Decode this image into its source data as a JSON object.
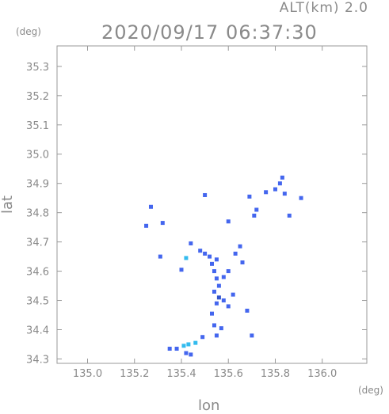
{
  "header": {
    "altitude_label": "ALT(km) 2.0",
    "timestamp": "2020/09/17 06:37:30"
  },
  "chart_data": {
    "type": "scatter",
    "xlabel": "lon",
    "ylabel": "lat",
    "x_unit": "(deg)",
    "y_unit": "(deg)",
    "xlim": [
      134.87,
      136.19
    ],
    "ylim": [
      34.285,
      35.37
    ],
    "x_ticks": [
      135.0,
      135.2,
      135.4,
      135.6,
      135.8,
      136.0
    ],
    "x_tick_labels": [
      "135.0",
      "135.2",
      "135.4",
      "135.6",
      "135.8",
      "136.0"
    ],
    "y_ticks": [
      34.3,
      34.4,
      34.5,
      34.6,
      34.7,
      34.8,
      34.9,
      35.0,
      35.1,
      35.2,
      35.3
    ],
    "y_tick_labels": [
      "34.3",
      "34.4",
      "34.5",
      "34.6",
      "34.7",
      "34.8",
      "34.9",
      "35.0",
      "35.1",
      "35.2",
      "35.3"
    ],
    "grid": false,
    "colors": {
      "frame": "#999999",
      "moderate": "#4466ee",
      "light": "#33bbee",
      "heavy": "#3355cc"
    },
    "points": [
      {
        "lon": 135.27,
        "lat": 34.82,
        "level": "moderate"
      },
      {
        "lon": 135.25,
        "lat": 34.755,
        "level": "moderate"
      },
      {
        "lon": 135.32,
        "lat": 34.765,
        "level": "moderate"
      },
      {
        "lon": 135.31,
        "lat": 34.65,
        "level": "moderate"
      },
      {
        "lon": 135.42,
        "lat": 34.645,
        "level": "light"
      },
      {
        "lon": 135.4,
        "lat": 34.605,
        "level": "moderate"
      },
      {
        "lon": 135.44,
        "lat": 34.695,
        "level": "moderate"
      },
      {
        "lon": 135.48,
        "lat": 34.67,
        "level": "moderate"
      },
      {
        "lon": 135.5,
        "lat": 34.66,
        "level": "moderate"
      },
      {
        "lon": 135.52,
        "lat": 34.65,
        "level": "moderate"
      },
      {
        "lon": 135.53,
        "lat": 34.625,
        "level": "moderate"
      },
      {
        "lon": 135.55,
        "lat": 34.64,
        "level": "moderate"
      },
      {
        "lon": 135.54,
        "lat": 34.6,
        "level": "moderate"
      },
      {
        "lon": 135.55,
        "lat": 34.575,
        "level": "moderate"
      },
      {
        "lon": 135.56,
        "lat": 34.55,
        "level": "moderate"
      },
      {
        "lon": 135.54,
        "lat": 34.53,
        "level": "moderate"
      },
      {
        "lon": 135.56,
        "lat": 34.51,
        "level": "heavy"
      },
      {
        "lon": 135.55,
        "lat": 34.49,
        "level": "moderate"
      },
      {
        "lon": 135.58,
        "lat": 34.5,
        "level": "moderate"
      },
      {
        "lon": 135.6,
        "lat": 34.48,
        "level": "moderate"
      },
      {
        "lon": 135.62,
        "lat": 34.52,
        "level": "moderate"
      },
      {
        "lon": 135.58,
        "lat": 34.58,
        "level": "moderate"
      },
      {
        "lon": 135.6,
        "lat": 34.6,
        "level": "moderate"
      },
      {
        "lon": 135.63,
        "lat": 34.66,
        "level": "moderate"
      },
      {
        "lon": 135.65,
        "lat": 34.685,
        "level": "moderate"
      },
      {
        "lon": 135.66,
        "lat": 34.63,
        "level": "moderate"
      },
      {
        "lon": 135.68,
        "lat": 34.465,
        "level": "moderate"
      },
      {
        "lon": 135.53,
        "lat": 34.455,
        "level": "moderate"
      },
      {
        "lon": 135.54,
        "lat": 34.415,
        "level": "moderate"
      },
      {
        "lon": 135.57,
        "lat": 34.405,
        "level": "moderate"
      },
      {
        "lon": 135.49,
        "lat": 34.375,
        "level": "moderate"
      },
      {
        "lon": 135.55,
        "lat": 34.38,
        "level": "moderate"
      },
      {
        "lon": 135.7,
        "lat": 34.38,
        "level": "moderate"
      },
      {
        "lon": 135.46,
        "lat": 34.355,
        "level": "light"
      },
      {
        "lon": 135.43,
        "lat": 34.35,
        "level": "light"
      },
      {
        "lon": 135.41,
        "lat": 34.345,
        "level": "light"
      },
      {
        "lon": 135.38,
        "lat": 34.335,
        "level": "moderate"
      },
      {
        "lon": 135.35,
        "lat": 34.335,
        "level": "moderate"
      },
      {
        "lon": 135.42,
        "lat": 34.32,
        "level": "moderate"
      },
      {
        "lon": 135.44,
        "lat": 34.315,
        "level": "moderate"
      },
      {
        "lon": 135.6,
        "lat": 34.77,
        "level": "moderate"
      },
      {
        "lon": 135.71,
        "lat": 34.79,
        "level": "moderate"
      },
      {
        "lon": 135.72,
        "lat": 34.81,
        "level": "moderate"
      },
      {
        "lon": 135.76,
        "lat": 34.87,
        "level": "moderate"
      },
      {
        "lon": 135.8,
        "lat": 34.88,
        "level": "moderate"
      },
      {
        "lon": 135.82,
        "lat": 34.9,
        "level": "moderate"
      },
      {
        "lon": 135.83,
        "lat": 34.92,
        "level": "moderate"
      },
      {
        "lon": 135.84,
        "lat": 34.865,
        "level": "moderate"
      },
      {
        "lon": 135.91,
        "lat": 34.85,
        "level": "moderate"
      },
      {
        "lon": 135.86,
        "lat": 34.79,
        "level": "moderate"
      },
      {
        "lon": 135.5,
        "lat": 34.86,
        "level": "moderate"
      },
      {
        "lon": 135.69,
        "lat": 34.855,
        "level": "moderate"
      }
    ]
  }
}
